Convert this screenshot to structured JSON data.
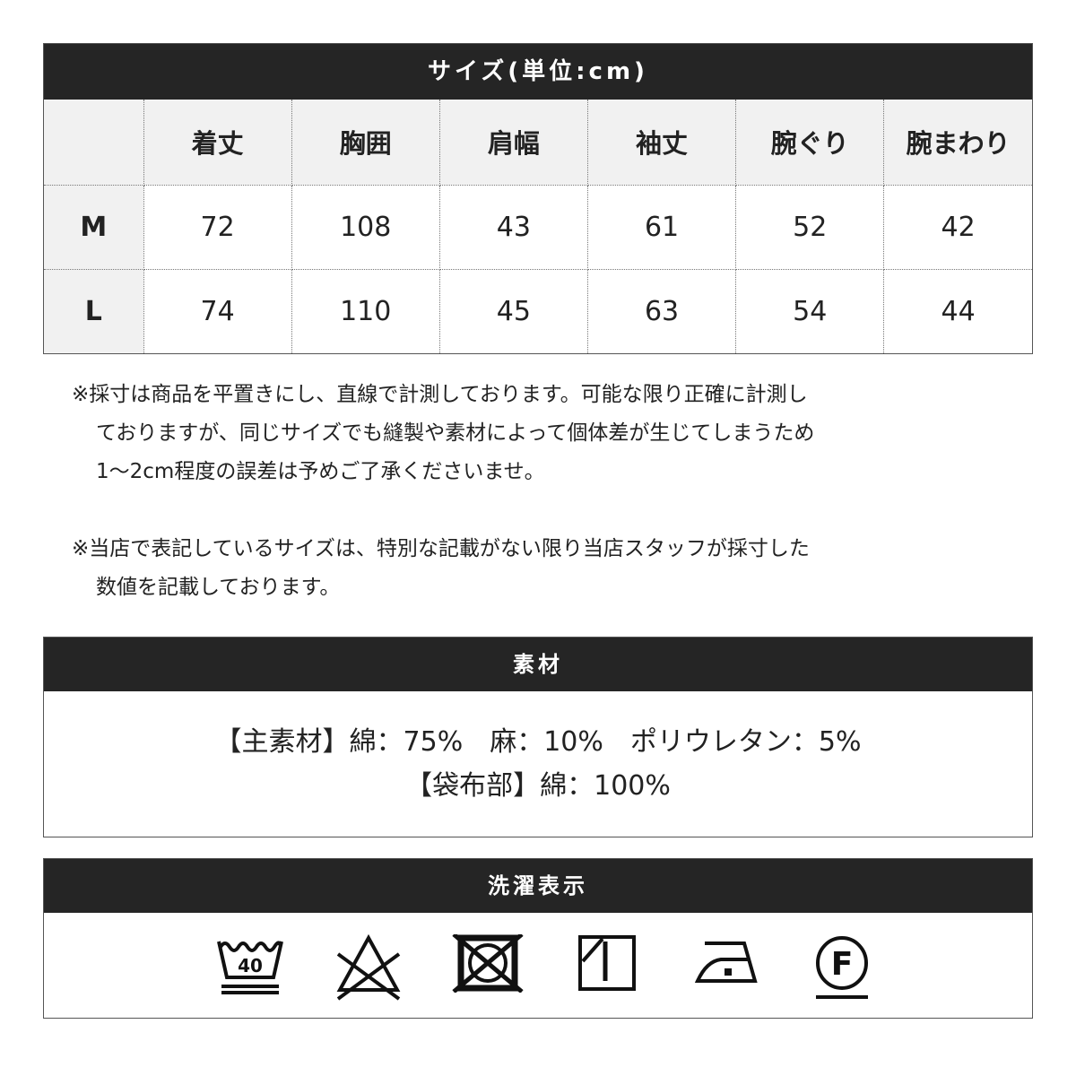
{
  "size_table": {
    "title": "サイズ(単位:cm)",
    "columns": [
      "",
      "着丈",
      "胸囲",
      "肩幅",
      "袖丈",
      "腕ぐり",
      "腕まわり"
    ],
    "rows": [
      [
        "M",
        "72",
        "108",
        "43",
        "61",
        "52",
        "42"
      ],
      [
        "L",
        "74",
        "110",
        "45",
        "63",
        "54",
        "44"
      ]
    ]
  },
  "notes": [
    [
      "※採寸は商品を平置きにし、直線で計測しております。可能な限り正確に計測し",
      "ておりますが、同じサイズでも縫製や素材によって個体差が生じてしまうため",
      "1～2cm程度の誤差は予めご了承くださいませ。"
    ],
    [
      "※当店で表記しているサイズは、特別な記載がない限り当店スタッフが採寸した",
      "数値を記載しております。"
    ]
  ],
  "material": {
    "title": "素材",
    "lines": [
      "【主素材】綿：75%　麻：10%　ポリウレタン：5%",
      "【袋布部】綿：100%"
    ]
  },
  "care": {
    "title": "洗濯表示",
    "icons": [
      "wash-40-gentle-icon",
      "no-bleach-icon",
      "no-tumble-dry-icon",
      "line-dry-shade-icon",
      "iron-low-icon",
      "dry-clean-f-gentle-icon"
    ],
    "wash_temp": "40",
    "dryclean_letter": "F"
  }
}
